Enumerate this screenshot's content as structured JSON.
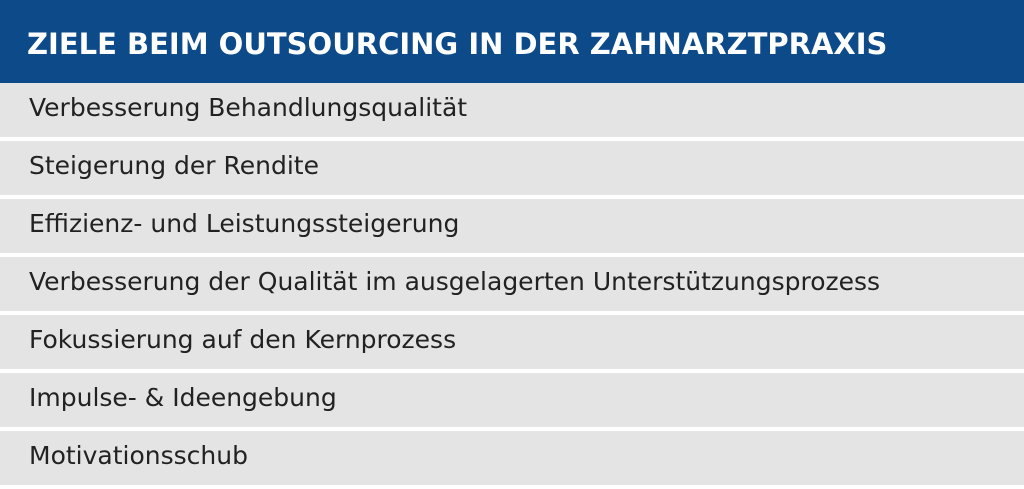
{
  "header": {
    "title": "ZIELE BEIM OUTSOURCING IN DER ZAHNARZTPRAXIS",
    "background": "#0c4a8a",
    "text_color": "#ffffff"
  },
  "list": {
    "row_background": "#e4e4e4",
    "items": [
      "Verbesserung Behandlungsqualität",
      "Steigerung der Rendite",
      "Effizienz- und Leistungssteigerung",
      "Verbesserung der Qualität im ausgelagerten Unterstützungsprozess",
      "Fokussierung auf den Kernprozess",
      "Impulse- & Ideengebung",
      "Motivationsschub"
    ]
  }
}
